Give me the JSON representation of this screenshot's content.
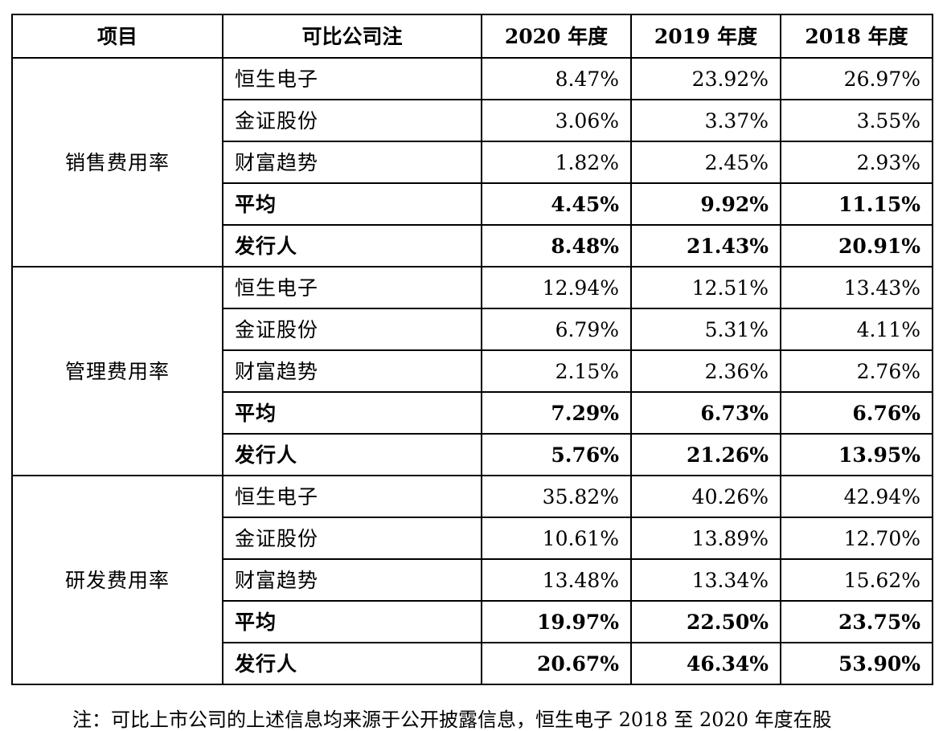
{
  "table": {
    "headers": [
      "项目",
      "可比公司注",
      "2020 年度",
      "2019 年度",
      "2018 年度"
    ],
    "groups": [
      {
        "item": "销售费用率",
        "rows": [
          {
            "company": "恒生电子",
            "values": [
              "8.47%",
              "23.92%",
              "26.97%"
            ],
            "bold": false
          },
          {
            "company": "金证股份",
            "values": [
              "3.06%",
              "3.37%",
              "3.55%"
            ],
            "bold": false
          },
          {
            "company": "财富趋势",
            "values": [
              "1.82%",
              "2.45%",
              "2.93%"
            ],
            "bold": false
          },
          {
            "company": "平均",
            "values": [
              "4.45%",
              "9.92%",
              "11.15%"
            ],
            "bold": true
          },
          {
            "company": "发行人",
            "values": [
              "8.48%",
              "21.43%",
              "20.91%"
            ],
            "bold": true
          }
        ]
      },
      {
        "item": "管理费用率",
        "rows": [
          {
            "company": "恒生电子",
            "values": [
              "12.94%",
              "12.51%",
              "13.43%"
            ],
            "bold": false
          },
          {
            "company": "金证股份",
            "values": [
              "6.79%",
              "5.31%",
              "4.11%"
            ],
            "bold": false
          },
          {
            "company": "财富趋势",
            "values": [
              "2.15%",
              "2.36%",
              "2.76%"
            ],
            "bold": false
          },
          {
            "company": "平均",
            "values": [
              "7.29%",
              "6.73%",
              "6.76%"
            ],
            "bold": true
          },
          {
            "company": "发行人",
            "values": [
              "5.76%",
              "21.26%",
              "13.95%"
            ],
            "bold": true
          }
        ]
      },
      {
        "item": "研发费用率",
        "rows": [
          {
            "company": "恒生电子",
            "values": [
              "35.82%",
              "40.26%",
              "42.94%"
            ],
            "bold": false
          },
          {
            "company": "金证股份",
            "values": [
              "10.61%",
              "13.89%",
              "12.70%"
            ],
            "bold": false
          },
          {
            "company": "财富趋势",
            "values": [
              "13.48%",
              "13.34%",
              "15.62%"
            ],
            "bold": false
          },
          {
            "company": "平均",
            "values": [
              "19.97%",
              "22.50%",
              "23.75%"
            ],
            "bold": true
          },
          {
            "company": "发行人",
            "values": [
              "20.67%",
              "46.34%",
              "53.90%"
            ],
            "bold": true
          }
        ]
      }
    ]
  },
  "footnote": "注：可比上市公司的上述信息均来源于公开披露信息，恒生电子 2018 至 2020 年度在股"
}
